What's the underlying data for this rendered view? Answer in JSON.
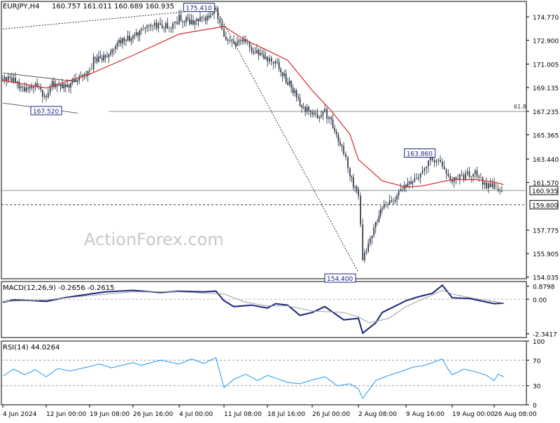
{
  "header": {
    "symbol_text": "EURJPY,H4",
    "ohlc_text": "160.757 161.011 160.689 160.935"
  },
  "watermark": "ActionForex.com",
  "colors": {
    "candle": "#1e2a3a",
    "ma": "#d42a2a",
    "macd": "#1a237e",
    "signal": "#9e9e9e",
    "rsi": "#2196f3",
    "level_line": "#808080",
    "frame": "#000000",
    "watermark": "#c8c8c8"
  },
  "chart_data": [
    {
      "type": "line",
      "panel": "price",
      "title": "EURJPY,H4",
      "last_price": 160.935,
      "y_ticks": [
        "174.770",
        "172.900",
        "171.005",
        "169.135",
        "167.235",
        "165.365",
        "163.440",
        "161.570",
        "157.775",
        "155.905",
        "154.035"
      ],
      "ylim": [
        153.9,
        176.0
      ],
      "x_ticks": [
        "4 Jun 2024",
        "12 Jun 00:00",
        "19 Jun 08:00",
        "26 Jun 16:00",
        "4 Jul 00:00",
        "11 Jul 08:00",
        "18 Jul 16:00",
        "26 Jul 00:00",
        "2 Aug 08:00",
        "9 Aug 16:00",
        "19 Aug 00:00",
        "26 Aug 08:00"
      ],
      "series": [
        {
          "kind": "candles_close_path",
          "points": [
            [
              "4 Jun 2024",
              169.8
            ],
            [
              "6 Jun",
              169.7
            ],
            [
              "8 Jun",
              168.8
            ],
            [
              "10 Jun",
              169.3
            ],
            [
              "12 Jun 00:00",
              168.3
            ],
            [
              "13 Jun",
              169.4
            ],
            [
              "15 Jun",
              169.2
            ],
            [
              "17 Jun",
              169.7
            ],
            [
              "19 Jun 08:00",
              170.3
            ],
            [
              "20 Jun",
              171.3
            ],
            [
              "22 Jun",
              171.5
            ],
            [
              "24 Jun",
              172.6
            ],
            [
              "26 Jun 16:00",
              173.2
            ],
            [
              "28 Jun",
              173.8
            ],
            [
              "1 Jul",
              174.2
            ],
            [
              "3 Jul",
              174.0
            ],
            [
              "4 Jul 00:00",
              174.7
            ],
            [
              "6 Jul",
              174.3
            ],
            [
              "8 Jul",
              174.6
            ],
            [
              "10 Jul",
              175.3
            ],
            [
              "11 Jul 08:00",
              173.0
            ],
            [
              "13 Jul",
              172.5
            ],
            [
              "15 Jul",
              172.8
            ],
            [
              "16 Jul",
              172.0
            ],
            [
              "18 Jul 16:00",
              171.5
            ],
            [
              "20 Jul",
              171.2
            ],
            [
              "22 Jul",
              169.6
            ],
            [
              "24 Jul",
              168.0
            ],
            [
              "26 Jul 00:00",
              166.8
            ],
            [
              "28 Jul",
              167.2
            ],
            [
              "29 Jul",
              166.4
            ],
            [
              "31 Jul",
              164.0
            ],
            [
              "1 Aug",
              162.0
            ],
            [
              "2 Aug 08:00",
              160.5
            ],
            [
              "3 Aug",
              155.4
            ],
            [
              "5 Aug",
              158.3
            ],
            [
              "6 Aug",
              159.6
            ],
            [
              "8 Aug",
              160.3
            ],
            [
              "9 Aug 16:00",
              161.3
            ],
            [
              "11 Aug",
              161.7
            ],
            [
              "13 Aug",
              162.4
            ],
            [
              "15 Aug",
              163.6
            ],
            [
              "17 Aug",
              162.9
            ],
            [
              "19 Aug 00:00",
              161.7
            ],
            [
              "21 Aug",
              162.1
            ],
            [
              "23 Aug",
              162.4
            ],
            [
              "25 Aug",
              161.2
            ],
            [
              "26 Aug 08:00",
              161.3
            ],
            [
              "28 Aug",
              160.9
            ]
          ]
        },
        {
          "kind": "moving_average",
          "points": [
            [
              "4 Jun 2024",
              169.7
            ],
            [
              "12 Jun 00:00",
              169.1
            ],
            [
              "19 Jun 08:00",
              170.2
            ],
            [
              "26 Jun 16:00",
              171.7
            ],
            [
              "4 Jul 00:00",
              173.4
            ],
            [
              "11 Jul 08:00",
              174.0
            ],
            [
              "15 Jul",
              172.9
            ],
            [
              "18 Jul 16:00",
              172.1
            ],
            [
              "22 Jul",
              171.3
            ],
            [
              "26 Jul 00:00",
              168.9
            ],
            [
              "29 Jul",
              167.3
            ],
            [
              "1 Aug",
              165.4
            ],
            [
              "2 Aug 08:00",
              163.4
            ],
            [
              "6 Aug",
              161.7
            ],
            [
              "9 Aug 16:00",
              161.2
            ],
            [
              "13 Aug",
              161.3
            ],
            [
              "19 Aug 00:00",
              161.8
            ],
            [
              "23 Aug",
              161.8
            ],
            [
              "26 Aug 08:00",
              161.6
            ],
            [
              "28 Aug",
              161.4
            ]
          ]
        }
      ],
      "levels": [
        {
          "value": 167.235,
          "label": "61.8",
          "style": "solid"
        },
        {
          "value": 160.935,
          "label": "160.935",
          "style": "solid_price"
        },
        {
          "value": 159.8,
          "label": "159.800",
          "style": "dashed"
        }
      ],
      "annotations": [
        {
          "label": "175.410",
          "x": "10 Jul",
          "y": 175.41
        },
        {
          "label": "167.520",
          "x": "12 Jun 00:00",
          "y": 167.52
        },
        {
          "label": "163.860",
          "x": "15 Aug",
          "y": 163.86
        },
        {
          "label": "154.400",
          "x": "2 Aug 08:00",
          "y": 154.4
        }
      ],
      "channel": [
        {
          "from": [
            "4 Jun 2024",
            170.3
          ],
          "to": [
            "12 Jun 00:00",
            169.6
          ]
        },
        {
          "from": [
            "4 Jun 2024",
            167.9
          ],
          "to": [
            "12 Jun 00:00",
            167.1
          ]
        }
      ],
      "trendlines": [
        {
          "from": [
            "4 Jun 2024",
            173.8
          ],
          "to": [
            "10 Jul",
            175.41
          ],
          "style": "dotted"
        },
        {
          "from": [
            "10 Jul",
            175.41
          ],
          "to": [
            "2 Aug 08:00",
            154.4
          ],
          "style": "dotted"
        }
      ]
    },
    {
      "type": "line",
      "panel": "macd",
      "title": "MACD(12,26,9) -0.2656 -0.2615",
      "y_ticks": [
        "0.8798",
        "0.00",
        "-2.3417"
      ],
      "ylim": [
        -2.6,
        1.2
      ],
      "series": [
        {
          "name": "macd",
          "points": [
            [
              "4 Jun 2024",
              -0.2
            ],
            [
              "6 Jun",
              -0.05
            ],
            [
              "10 Jun",
              -0.1
            ],
            [
              "12 Jun 00:00",
              -0.15
            ],
            [
              "15 Jun",
              0.1
            ],
            [
              "19 Jun 08:00",
              0.35
            ],
            [
              "22 Jun",
              0.5
            ],
            [
              "26 Jun 16:00",
              0.6
            ],
            [
              "1 Jul",
              0.45
            ],
            [
              "4 Jul 00:00",
              0.55
            ],
            [
              "8 Jul",
              0.5
            ],
            [
              "10 Jul",
              0.55
            ],
            [
              "11 Jul 08:00",
              -0.1
            ],
            [
              "13 Jul",
              -0.5
            ],
            [
              "16 Jul",
              -0.4
            ],
            [
              "18 Jul 16:00",
              -0.6
            ],
            [
              "20 Jul",
              -0.3
            ],
            [
              "22 Jul",
              -0.4
            ],
            [
              "24 Jul",
              -1.1
            ],
            [
              "26 Jul 00:00",
              -0.9
            ],
            [
              "28 Jul",
              -0.5
            ],
            [
              "31 Jul",
              -1.4
            ],
            [
              "2 Aug 08:00",
              -1.3
            ],
            [
              "3 Aug",
              -2.3
            ],
            [
              "5 Aug",
              -1.6
            ],
            [
              "6 Aug",
              -0.9
            ],
            [
              "9 Aug 16:00",
              -0.1
            ],
            [
              "12 Aug",
              0.15
            ],
            [
              "15 Aug",
              0.4
            ],
            [
              "17 Aug",
              0.95
            ],
            [
              "19 Aug 00:00",
              0.1
            ],
            [
              "22 Aug",
              0.05
            ],
            [
              "26 Aug 08:00",
              -0.3
            ],
            [
              "28 Aug",
              -0.27
            ]
          ]
        },
        {
          "name": "signal",
          "points": [
            [
              "4 Jun 2024",
              -0.15
            ],
            [
              "12 Jun 00:00",
              -0.05
            ],
            [
              "19 Jun 08:00",
              0.25
            ],
            [
              "26 Jun 16:00",
              0.5
            ],
            [
              "4 Jul 00:00",
              0.5
            ],
            [
              "11 Jul 08:00",
              0.35
            ],
            [
              "15 Jul",
              -0.2
            ],
            [
              "18 Jul 16:00",
              -0.45
            ],
            [
              "22 Jul",
              -0.45
            ],
            [
              "26 Jul 00:00",
              -0.8
            ],
            [
              "31 Jul",
              -0.9
            ],
            [
              "2 Aug 08:00",
              -1.2
            ],
            [
              "4 Aug",
              -1.6
            ],
            [
              "7 Aug",
              -1.3
            ],
            [
              "9 Aug 16:00",
              -0.5
            ],
            [
              "13 Aug",
              0.0
            ],
            [
              "17 Aug",
              0.6
            ],
            [
              "19 Aug 00:00",
              0.35
            ],
            [
              "23 Aug",
              0.05
            ],
            [
              "28 Aug",
              -0.26
            ]
          ]
        }
      ]
    },
    {
      "type": "line",
      "panel": "rsi",
      "title": "RSI(14) 44.0264",
      "y_ticks": [
        "100",
        "70",
        "30",
        "0"
      ],
      "ylim": [
        0,
        100
      ],
      "levels": [
        70,
        30
      ],
      "series": [
        {
          "name": "rsi",
          "points": [
            [
              "4 Jun 2024",
              45
            ],
            [
              "6 Jun",
              56
            ],
            [
              "8 Jun",
              47
            ],
            [
              "10 Jun",
              55
            ],
            [
              "12 Jun 00:00",
              44
            ],
            [
              "14 Jun",
              57
            ],
            [
              "16 Jun",
              53
            ],
            [
              "19 Jun 08:00",
              60
            ],
            [
              "21 Jun",
              64
            ],
            [
              "23 Jun",
              58
            ],
            [
              "26 Jun 16:00",
              66
            ],
            [
              "28 Jun",
              62
            ],
            [
              "1 Jul",
              70
            ],
            [
              "4 Jul 00:00",
              64
            ],
            [
              "6 Jul",
              72
            ],
            [
              "8 Jul",
              65
            ],
            [
              "10 Jul",
              74
            ],
            [
              "11 Jul 08:00",
              27
            ],
            [
              "13 Jul",
              40
            ],
            [
              "15 Jul",
              48
            ],
            [
              "17 Jul",
              38
            ],
            [
              "18 Jul 16:00",
              46
            ],
            [
              "20 Jul",
              42
            ],
            [
              "22 Jul",
              35
            ],
            [
              "24 Jul",
              33
            ],
            [
              "26 Jul 00:00",
              39
            ],
            [
              "28 Jul",
              44
            ],
            [
              "30 Jul",
              30
            ],
            [
              "1 Aug",
              33
            ],
            [
              "2 Aug 08:00",
              25
            ],
            [
              "3 Aug",
              10
            ],
            [
              "5 Aug",
              38
            ],
            [
              "7 Aug",
              46
            ],
            [
              "9 Aug 16:00",
              55
            ],
            [
              "11 Aug",
              59
            ],
            [
              "13 Aug",
              61
            ],
            [
              "15 Aug",
              66
            ],
            [
              "17 Aug",
              72
            ],
            [
              "18 Aug",
              58
            ],
            [
              "19 Aug 00:00",
              47
            ],
            [
              "21 Aug",
              56
            ],
            [
              "23 Aug",
              52
            ],
            [
              "25 Aug",
              46
            ],
            [
              "26 Aug 08:00",
              38
            ],
            [
              "27 Aug",
              48
            ],
            [
              "28 Aug",
              44
            ]
          ]
        }
      ]
    }
  ]
}
